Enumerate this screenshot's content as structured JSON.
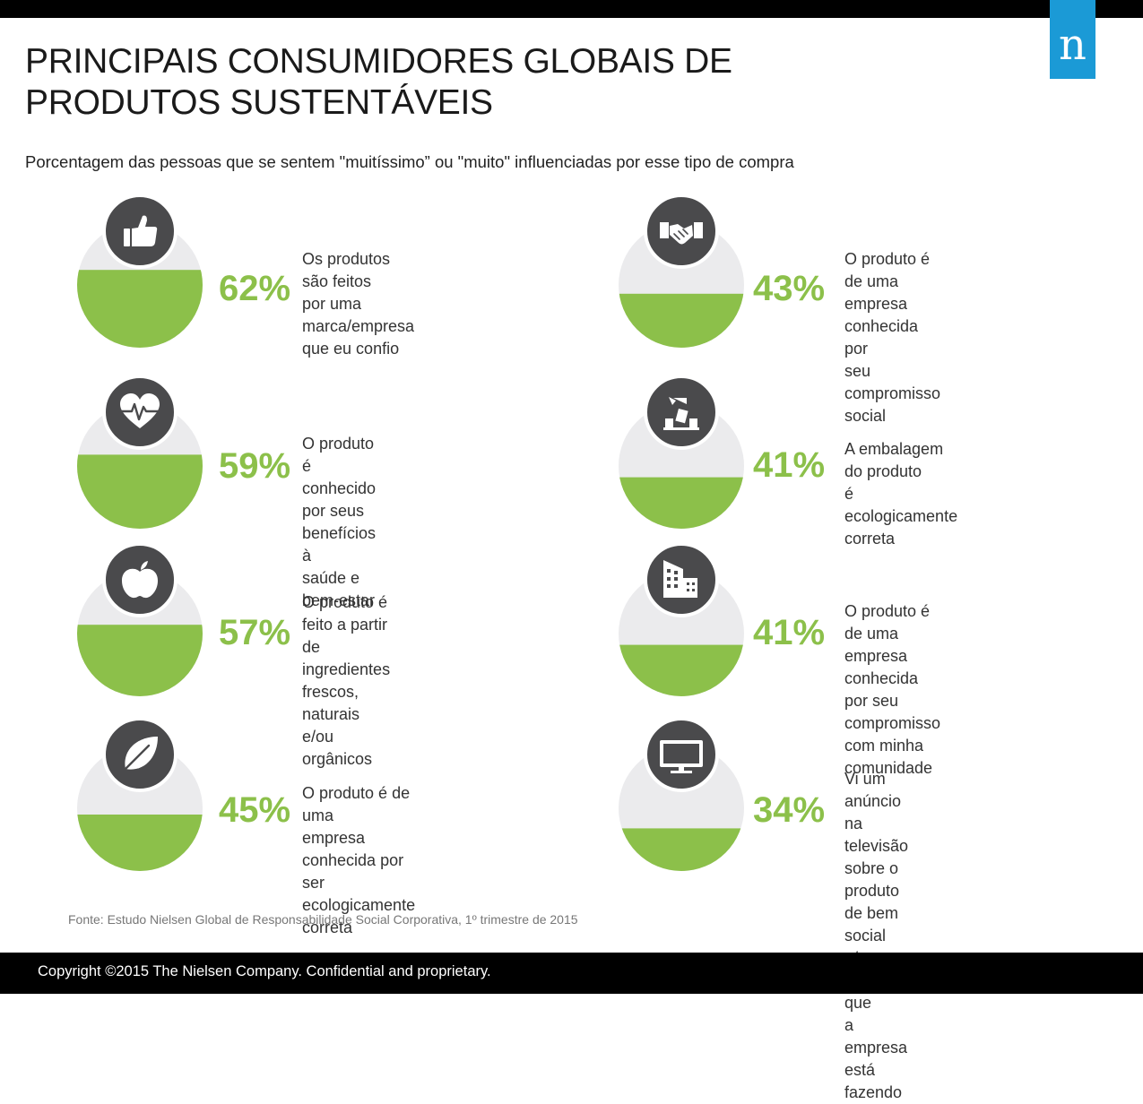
{
  "header": {
    "title_line1": "PRINCIPAIS CONSUMIDORES GLOBAIS DE",
    "title_line2": "PRODUTOS SUSTENTÁVEIS",
    "subtitle": "Porcentagem das pessoas que se sentem \"muitíssimo” ou \"muito\" influenciadas por esse tipo de compra",
    "logo_letter": "n"
  },
  "colors": {
    "green": "#8cc04a",
    "light_gray": "#ebebed",
    "icon_dark": "#4a4a4c",
    "logo_blue": "#1b9ad6"
  },
  "chart_data": {
    "type": "bar",
    "categories": [
      "Os produtos são feitos por uma marca/empresa que eu confio",
      "O produto é conhecido por seus benefícios à saúde e bem-estar",
      "O produto é feito a partir de ingredientes frescos, naturais e/ou orgânicos",
      "O produto é de uma empresa conhecida por ser ecologicamente correta",
      "O produto é de uma empresa conhecida por seu compromisso social",
      "A embalagem do produto é ecologicamente correta",
      "O produto é de uma empresa conhecida por seu compromisso com minha comunidade",
      "Vi um anúncio na televisão sobre o produto de bem social e/ou ambiental que a empresa está fazendo"
    ],
    "values": [
      62,
      59,
      57,
      45,
      43,
      41,
      41,
      34
    ],
    "ylim": [
      0,
      100
    ],
    "items": [
      {
        "value": 62,
        "label": "62%",
        "text": "Os produtos são feitos\npor uma marca/empresa\nque eu confio",
        "icon": "thumbs-up-icon"
      },
      {
        "value": 59,
        "label": "59%",
        "text": "O produto é conhecido\npor seus benefícios à\nsaúde e bem-estar",
        "icon": "heart-pulse-icon"
      },
      {
        "value": 57,
        "label": "57%",
        "text": "O produto é feito a partir\nde ingredientes frescos,\nnaturais e/ou orgânicos",
        "icon": "apple-icon"
      },
      {
        "value": 45,
        "label": "45%",
        "text": "O produto é de uma\nempresa conhecida por ser\necologicamente correta",
        "icon": "leaf-icon"
      },
      {
        "value": 43,
        "label": "43%",
        "text": "O produto é de uma\nempresa conhecida por\nseu compromisso social",
        "icon": "handshake-icon"
      },
      {
        "value": 41,
        "label": "41%",
        "text": "A embalagem do produto\né ecologicamente correta",
        "icon": "recycle-packaging-icon"
      },
      {
        "value": 41,
        "label": "41%",
        "text": "O produto é de uma empresa\nconhecida por seu compromisso\ncom minha comunidade",
        "icon": "buildings-icon"
      },
      {
        "value": 34,
        "label": "34%",
        "text": "Vi um anúncio na televisão\nsobre o produto de bem\nsocial e/ou ambiental que\na empresa está fazendo",
        "icon": "television-icon"
      }
    ]
  },
  "source": "Fonte: Estudo Nielsen Global de Responsabilidade Social Corporativa, 1º trimestre de 2015",
  "footer": "Copyright ©2015 The Nielsen Company. Confidential and proprietary."
}
